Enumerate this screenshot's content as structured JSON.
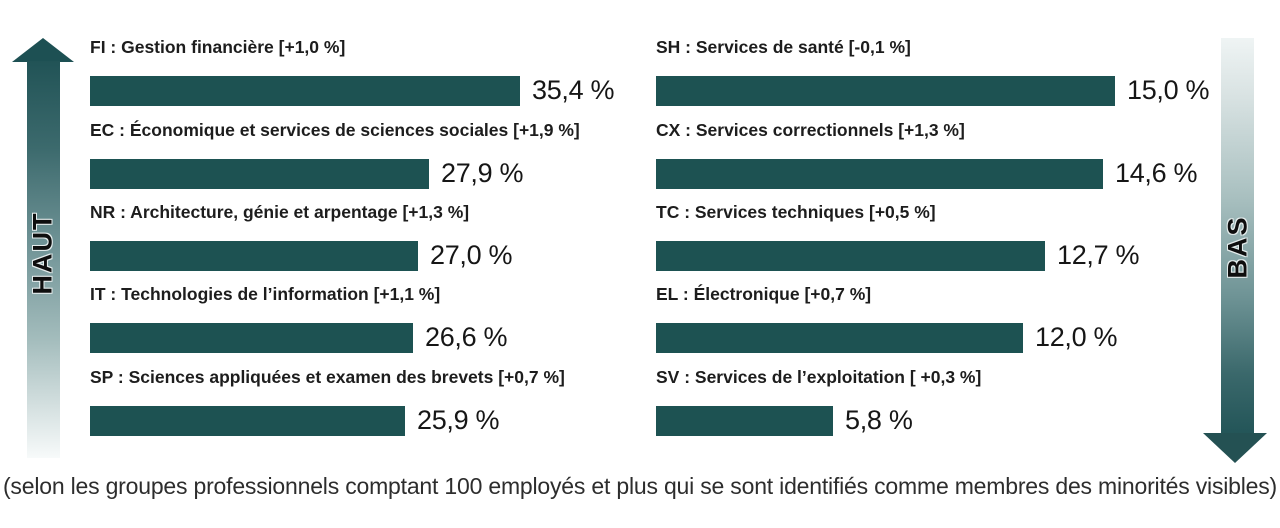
{
  "chart_data": {
    "type": "bar",
    "orientation": "horizontal",
    "unit": "%",
    "caption": "(selon les groupes professionnels comptant 100 employés et plus qui se sont identifiés comme membres des minorités visibles)",
    "colors": {
      "bar": "#1d5252",
      "arrow_dark": "#1e5154"
    },
    "columns": [
      {
        "arrow_label": "HAUT",
        "arrow_direction": "up",
        "items": [
          {
            "label": "FI : Gestion financière [+1,0 %]",
            "value": 35.4,
            "value_label": "35,4 %"
          },
          {
            "label": "EC : Économique et services de sciences sociales [+1,9 %]",
            "value": 27.9,
            "value_label": "27,9 %"
          },
          {
            "label": "NR : Architecture, génie et arpentage [+1,3 %]",
            "value": 27.0,
            "value_label": "27,0 %"
          },
          {
            "label": "IT : Technologies de l’information [+1,1 %]",
            "value": 26.6,
            "value_label": "26,6 %"
          },
          {
            "label": "SP : Sciences appliquées et examen des brevets [+0,7 %]",
            "value": 25.9,
            "value_label": "25,9 %"
          }
        ]
      },
      {
        "arrow_label": "BAS",
        "arrow_direction": "down",
        "items": [
          {
            "label": "SH : Services de santé [-0,1 %]",
            "value": 15.0,
            "value_label": "15,0 %"
          },
          {
            "label": "CX : Services correctionnels [+1,3 %]",
            "value": 14.6,
            "value_label": "14,6 %"
          },
          {
            "label": "TC : Services techniques [+0,5 %]",
            "value": 12.7,
            "value_label": "12,7 %"
          },
          {
            "label": "EL : Électronique [+0,7 %]",
            "value": 12.0,
            "value_label": "12,0 %"
          },
          {
            "label": "SV : Services de l’exploitation [ +0,3 %]",
            "value": 5.8,
            "value_label": "5,8 %"
          }
        ]
      }
    ]
  }
}
